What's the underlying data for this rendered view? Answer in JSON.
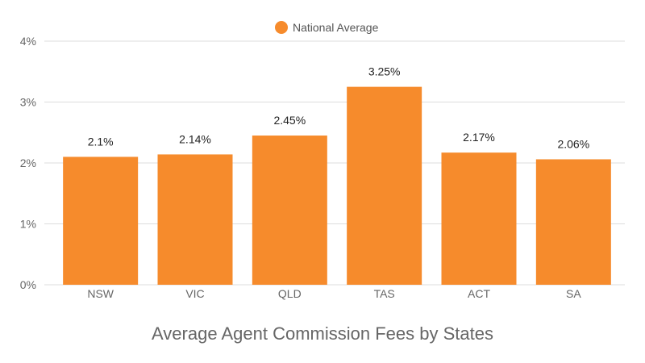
{
  "chart_data": {
    "type": "bar",
    "title": "Average Agent Commission Fees by States",
    "categories": [
      "NSW",
      "VIC",
      "QLD",
      "TAS",
      "ACT",
      "SA"
    ],
    "series": [
      {
        "name": "National Average",
        "values": [
          2.1,
          2.14,
          2.45,
          3.25,
          2.17,
          2.06
        ],
        "labels": [
          "2.1%",
          "2.14%",
          "2.45%",
          "3.25%",
          "2.17%",
          "2.06%"
        ],
        "color": "#f68b2c"
      }
    ],
    "ylim": [
      0,
      4
    ],
    "yticks": [
      0,
      1,
      2,
      3,
      4
    ],
    "ytick_labels": [
      "0%",
      "1%",
      "2%",
      "3%",
      "4%"
    ],
    "grid": true,
    "legend_position": "top-center",
    "colors": {
      "bar": "#f68b2c",
      "grid": "#dddddd",
      "axis_text": "#666666"
    }
  }
}
